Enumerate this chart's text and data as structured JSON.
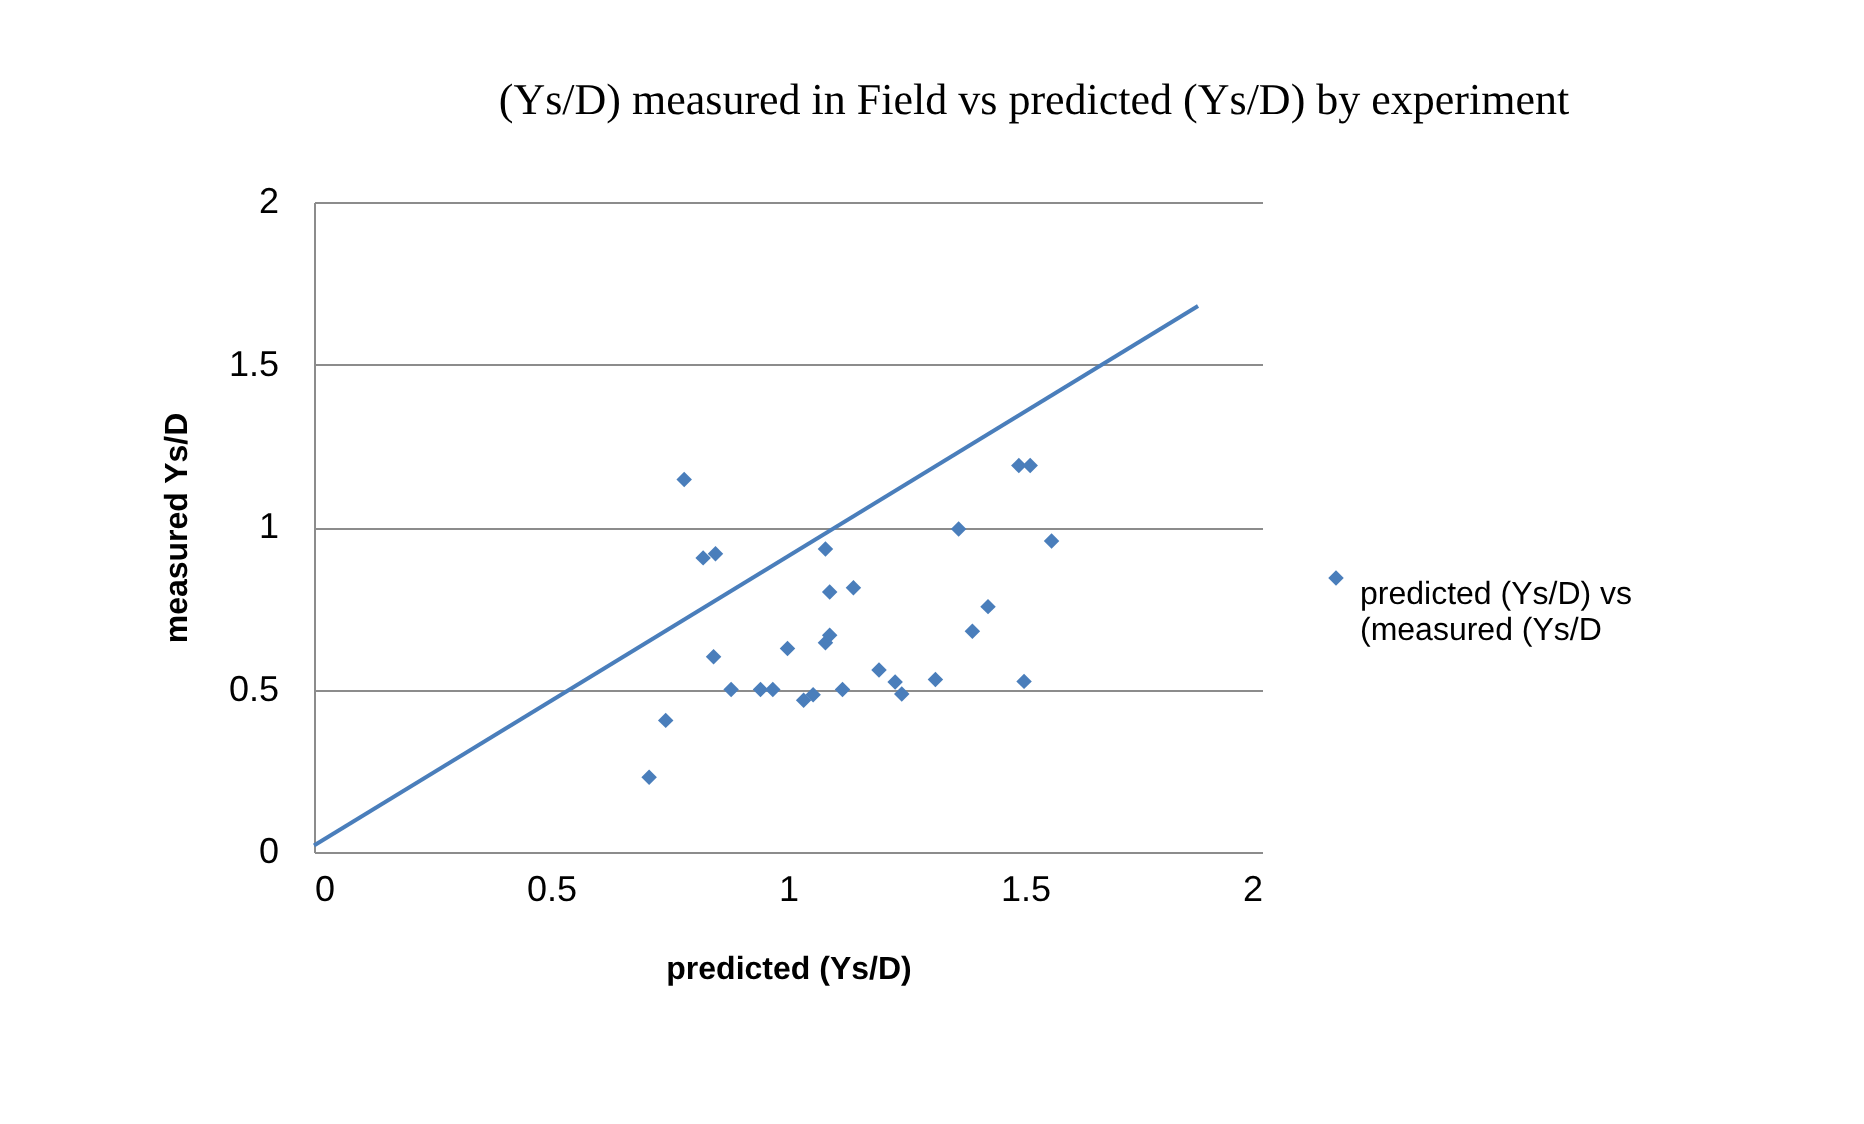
{
  "chart_data": {
    "type": "scatter",
    "title": "(Ys/D) measured in Field  vs predicted (Ys/D) by experiment",
    "xlabel": "predicted (Ys/D)",
    "ylabel": "measured Ys/D",
    "xlim": [
      0,
      2
    ],
    "xticks": [
      0,
      0.5,
      1,
      1.5,
      2
    ],
    "ylim": [
      0,
      2
    ],
    "yticks": [
      0,
      0.5,
      1,
      1.5,
      2
    ],
    "grid": "y",
    "legend": "right",
    "marker": "diamond",
    "series": [
      {
        "name": "predicted (Ys/D) vs (measured (Ys/D",
        "color": "#4a7ebb",
        "x": [
          0.707,
          0.742,
          0.781,
          0.821,
          0.847,
          0.843,
          0.88,
          0.942,
          0.968,
          0.999,
          1.033,
          1.053,
          1.079,
          1.088,
          1.138,
          1.079,
          1.088,
          1.115,
          1.192,
          1.226,
          1.24,
          1.311,
          1.36,
          1.389,
          1.422,
          1.487,
          1.511,
          1.498,
          1.556
        ],
        "values": [
          0.23,
          0.405,
          1.146,
          0.905,
          0.918,
          0.601,
          0.5,
          0.5,
          0.5,
          0.626,
          0.467,
          0.484,
          0.932,
          0.8,
          0.813,
          0.644,
          0.667,
          0.5,
          0.56,
          0.523,
          0.486,
          0.531,
          0.994,
          0.679,
          0.755,
          1.189,
          1.189,
          0.525,
          0.957
        ]
      },
      {
        "type": "line",
        "marker": "none",
        "color": "#4a7ebb",
        "x": [
          0,
          1.865
        ],
        "values": [
          0.02,
          1.68
        ]
      }
    ]
  }
}
